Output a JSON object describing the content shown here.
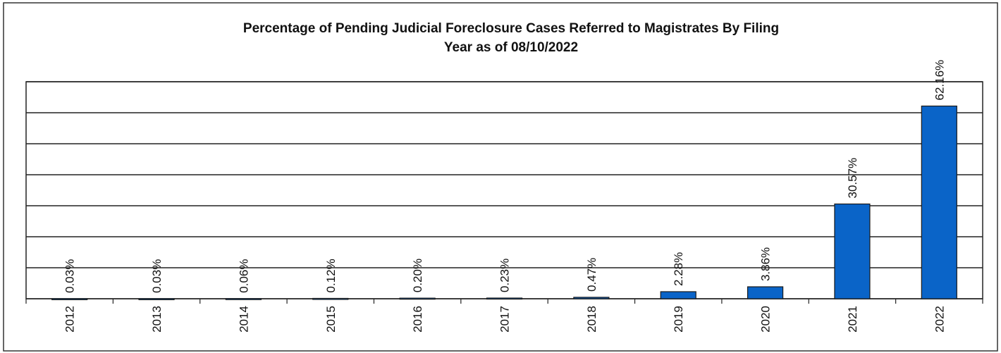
{
  "chart_data": {
    "type": "bar",
    "title": [
      "Percentage of Pending Judicial Foreclosure Cases Referred to Magistrates By Filing",
      "Year as of 08/10/2022"
    ],
    "categories": [
      "2012",
      "2013",
      "2014",
      "2015",
      "2016",
      "2017",
      "2018",
      "2019",
      "2020",
      "2021",
      "2022"
    ],
    "values": [
      0.03,
      0.03,
      0.06,
      0.12,
      0.2,
      0.23,
      0.47,
      2.28,
      3.86,
      30.57,
      62.16
    ],
    "value_labels": [
      "0.03%",
      "0.03%",
      "0.06%",
      "0.12%",
      "0.20%",
      "0.23%",
      "0.47%",
      "2.28%",
      "3.86%",
      "30.57%",
      "62.16%"
    ],
    "color": "#0a64c8",
    "ylim": [
      0,
      70
    ],
    "yticks": [
      0,
      10,
      20,
      30,
      40,
      50,
      60,
      70
    ],
    "grid": true
  }
}
